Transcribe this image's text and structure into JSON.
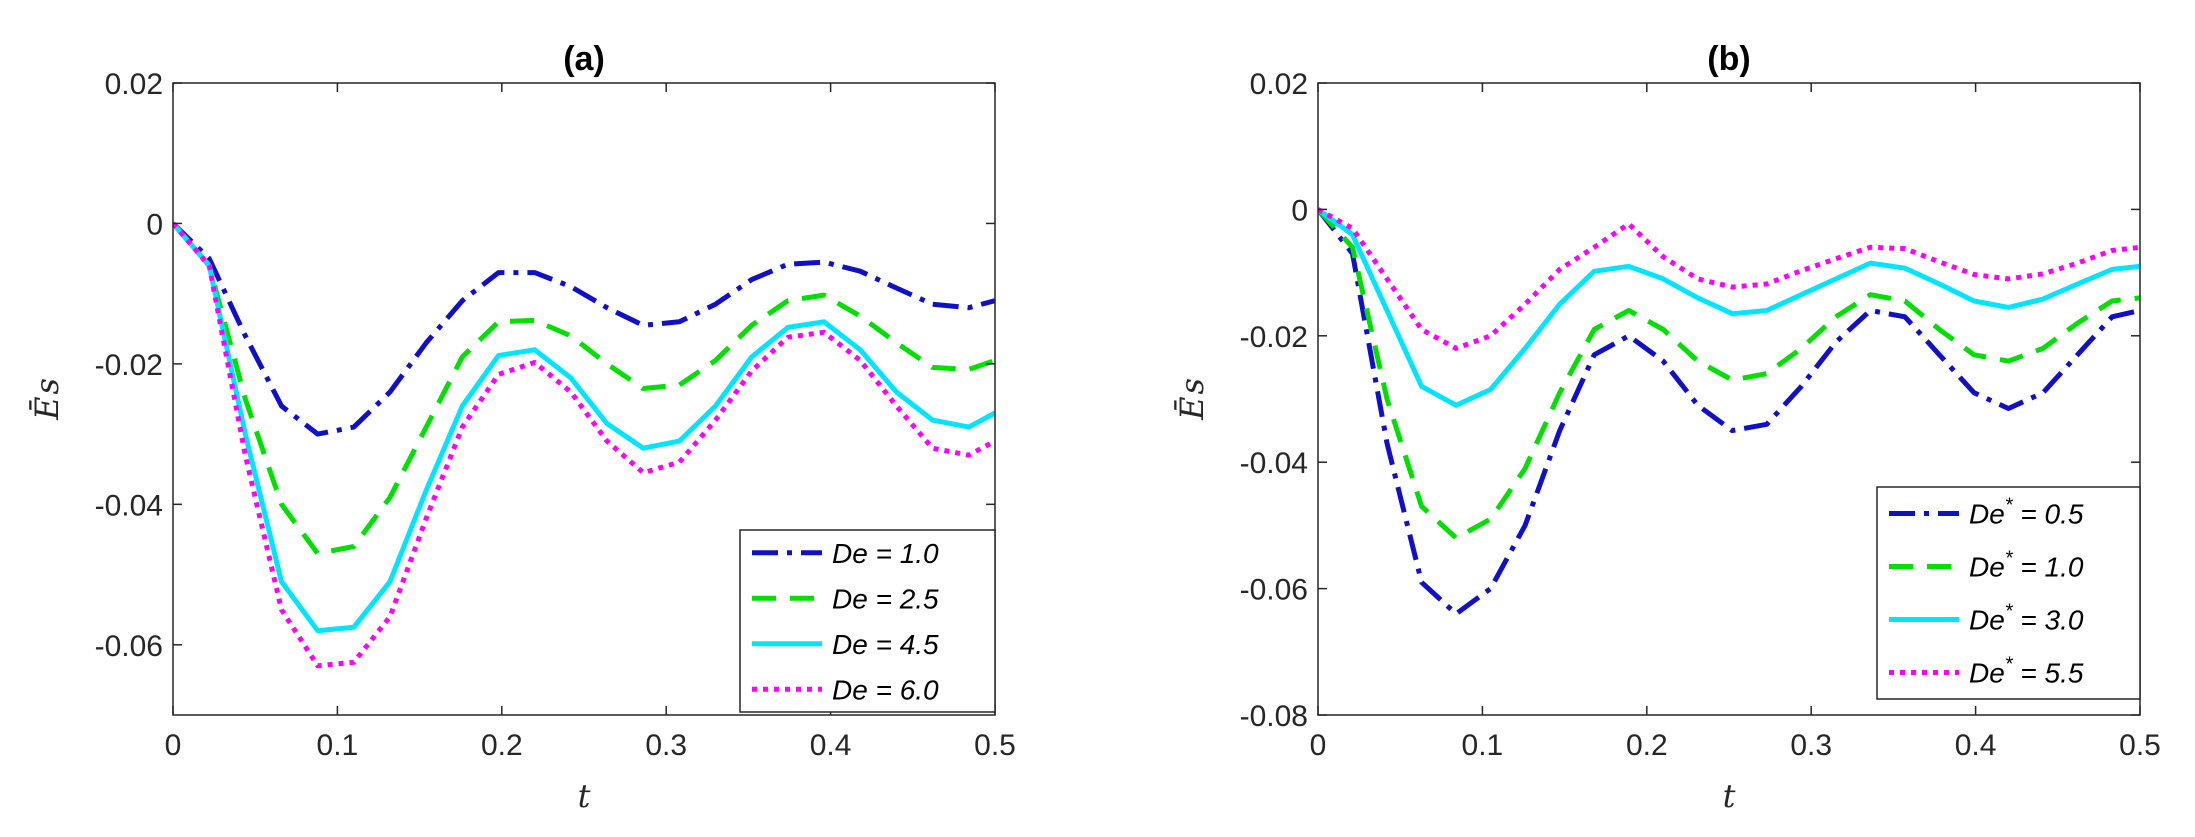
{
  "chart_data": [
    {
      "type": "line",
      "title": "(a)",
      "xlabel": "t",
      "ylabel": "Ē s",
      "ylabel_main": "Ē",
      "ylabel_sub": "s",
      "xlim": [
        0,
        0.5
      ],
      "ylim": [
        -0.07,
        0.02
      ],
      "xticks": [
        0,
        0.1,
        0.2,
        0.3,
        0.4,
        0.5
      ],
      "xtick_labels": [
        "0",
        "0.1",
        "0.2",
        "0.3",
        "0.4",
        "0.5"
      ],
      "yticks": [
        0.02,
        0,
        -0.02,
        -0.04,
        -0.06
      ],
      "ytick_labels": [
        "0.02",
        "0",
        "-0.02",
        "-0.04",
        "-0.06"
      ],
      "legend_position": "bottom-right",
      "x": [
        0,
        0.022,
        0.044,
        0.066,
        0.088,
        0.11,
        0.132,
        0.154,
        0.176,
        0.198,
        0.22,
        0.242,
        0.264,
        0.286,
        0.308,
        0.33,
        0.352,
        0.374,
        0.396,
        0.418,
        0.44,
        0.462,
        0.484,
        0.5
      ],
      "series": [
        {
          "name": "De = 1.0",
          "color": "#1010c8",
          "dash": "26,9,5,9",
          "values": [
            0,
            -0.005,
            -0.016,
            -0.026,
            -0.03,
            -0.029,
            -0.024,
            -0.017,
            -0.011,
            -0.007,
            -0.007,
            -0.009,
            -0.012,
            -0.0145,
            -0.014,
            -0.0115,
            -0.008,
            -0.0058,
            -0.0055,
            -0.0068,
            -0.0092,
            -0.0115,
            -0.012,
            -0.011
          ]
        },
        {
          "name": "De = 2.5",
          "color": "#00e000",
          "dash": "24,14",
          "values": [
            0,
            -0.006,
            -0.025,
            -0.04,
            -0.047,
            -0.046,
            -0.039,
            -0.029,
            -0.019,
            -0.014,
            -0.0138,
            -0.016,
            -0.02,
            -0.0235,
            -0.023,
            -0.0195,
            -0.0145,
            -0.011,
            -0.0102,
            -0.0132,
            -0.017,
            -0.0205,
            -0.0208,
            -0.0195
          ]
        },
        {
          "name": "De = 4.5",
          "color": "#00e5ff",
          "dash": "",
          "values": [
            0,
            -0.006,
            -0.03,
            -0.051,
            -0.058,
            -0.0575,
            -0.051,
            -0.038,
            -0.026,
            -0.0188,
            -0.018,
            -0.022,
            -0.0285,
            -0.032,
            -0.031,
            -0.026,
            -0.019,
            -0.0148,
            -0.014,
            -0.018,
            -0.024,
            -0.028,
            -0.029,
            -0.027
          ]
        },
        {
          "name": "De = 6.0",
          "color": "#ff00ff",
          "dash": "5,6",
          "values": [
            0,
            -0.006,
            -0.033,
            -0.055,
            -0.063,
            -0.0625,
            -0.056,
            -0.042,
            -0.029,
            -0.0215,
            -0.0198,
            -0.024,
            -0.031,
            -0.0355,
            -0.034,
            -0.028,
            -0.021,
            -0.0162,
            -0.0155,
            -0.0195,
            -0.026,
            -0.032,
            -0.033,
            -0.031
          ]
        }
      ]
    },
    {
      "type": "line",
      "title": "(b)",
      "xlabel": "t",
      "ylabel": "Ē s",
      "ylabel_main": "Ē",
      "ylabel_sub": "s",
      "xlim": [
        0,
        0.5
      ],
      "ylim": [
        -0.08,
        0.02
      ],
      "xticks": [
        0,
        0.1,
        0.2,
        0.3,
        0.4,
        0.5
      ],
      "xtick_labels": [
        "0",
        "0.1",
        "0.2",
        "0.3",
        "0.4",
        "0.5"
      ],
      "yticks": [
        0.02,
        0,
        -0.02,
        -0.04,
        -0.06,
        -0.08
      ],
      "ytick_labels": [
        "0.02",
        "0",
        "-0.02",
        "-0.04",
        "-0.06",
        "-0.08"
      ],
      "legend_position": "bottom-right",
      "x": [
        0,
        0.021,
        0.042,
        0.063,
        0.084,
        0.105,
        0.126,
        0.147,
        0.168,
        0.189,
        0.21,
        0.231,
        0.252,
        0.273,
        0.294,
        0.315,
        0.336,
        0.357,
        0.378,
        0.399,
        0.42,
        0.441,
        0.462,
        0.483,
        0.5
      ],
      "series": [
        {
          "name": "De* = 0.5",
          "label_base": "De",
          "label_sup": "*",
          "label_rest": " = 0.5",
          "color": "#1010c8",
          "dash": "26,9,5,9",
          "values": [
            0,
            -0.007,
            -0.037,
            -0.059,
            -0.064,
            -0.06,
            -0.05,
            -0.035,
            -0.023,
            -0.02,
            -0.024,
            -0.031,
            -0.035,
            -0.034,
            -0.028,
            -0.021,
            -0.016,
            -0.017,
            -0.023,
            -0.029,
            -0.0315,
            -0.029,
            -0.023,
            -0.017,
            -0.016
          ]
        },
        {
          "name": "De* = 1.0",
          "label_base": "De",
          "label_sup": "*",
          "label_rest": " = 1.0",
          "color": "#00e000",
          "dash": "24,14",
          "values": [
            0,
            -0.006,
            -0.03,
            -0.047,
            -0.052,
            -0.049,
            -0.041,
            -0.029,
            -0.019,
            -0.016,
            -0.019,
            -0.024,
            -0.027,
            -0.026,
            -0.022,
            -0.017,
            -0.0135,
            -0.0145,
            -0.019,
            -0.023,
            -0.024,
            -0.022,
            -0.018,
            -0.0145,
            -0.014
          ]
        },
        {
          "name": "De* = 3.0",
          "label_base": "De",
          "label_sup": "*",
          "label_rest": " = 3.0",
          "color": "#00e5ff",
          "dash": "",
          "values": [
            0,
            -0.004,
            -0.016,
            -0.028,
            -0.031,
            -0.0285,
            -0.022,
            -0.015,
            -0.0098,
            -0.009,
            -0.011,
            -0.014,
            -0.0165,
            -0.016,
            -0.0135,
            -0.011,
            -0.0085,
            -0.0093,
            -0.0118,
            -0.0145,
            -0.0155,
            -0.0142,
            -0.0118,
            -0.0095,
            -0.009
          ]
        },
        {
          "name": "De* = 5.5",
          "label_base": "De",
          "label_sup": "*",
          "label_rest": " = 5.5",
          "color": "#ff00ff",
          "dash": "5,6",
          "values": [
            0,
            -0.003,
            -0.011,
            -0.019,
            -0.022,
            -0.02,
            -0.015,
            -0.0095,
            -0.006,
            -0.0023,
            -0.0075,
            -0.011,
            -0.0123,
            -0.0118,
            -0.0097,
            -0.0078,
            -0.006,
            -0.0062,
            -0.0083,
            -0.0103,
            -0.011,
            -0.0102,
            -0.0085,
            -0.0065,
            -0.006
          ]
        }
      ]
    }
  ]
}
